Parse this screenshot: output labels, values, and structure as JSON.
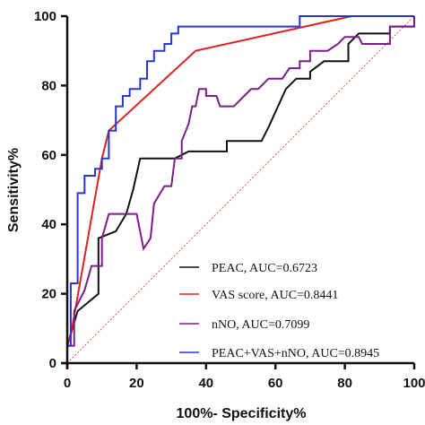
{
  "chart_data": {
    "type": "line",
    "title": "",
    "xlabel": "100%- Specificity%",
    "ylabel": "Sensitivity%",
    "xlim": [
      0,
      100
    ],
    "ylim": [
      0,
      100
    ],
    "x_ticks": [
      "0",
      "20",
      "40",
      "60",
      "80",
      "100"
    ],
    "y_ticks": [
      "0",
      "20",
      "40",
      "60",
      "80",
      "100"
    ],
    "grid": false,
    "legend_position": "bottom-right",
    "reference_line": {
      "from": [
        0,
        0
      ],
      "to": [
        100,
        100
      ],
      "color": "#e05050",
      "style": "dotted"
    },
    "series": [
      {
        "name": "PEAC, AUC=0.6723",
        "color": "#111111",
        "points": [
          [
            0,
            0
          ],
          [
            0,
            5
          ],
          [
            3,
            15
          ],
          [
            9,
            20
          ],
          [
            9,
            36
          ],
          [
            14,
            38
          ],
          [
            17,
            43
          ],
          [
            19,
            50
          ],
          [
            21,
            59
          ],
          [
            31,
            59
          ],
          [
            35,
            61
          ],
          [
            46,
            61
          ],
          [
            46,
            64
          ],
          [
            56,
            64
          ],
          [
            58,
            68
          ],
          [
            63,
            79
          ],
          [
            66,
            82
          ],
          [
            70,
            82
          ],
          [
            70,
            84
          ],
          [
            74,
            87
          ],
          [
            81,
            87
          ],
          [
            81,
            92
          ],
          [
            84,
            95
          ],
          [
            93,
            95
          ],
          [
            93,
            97
          ],
          [
            100,
            97
          ],
          [
            100,
            100
          ]
        ]
      },
      {
        "name": "VAS score, AUC=0.8441",
        "color": "#e02020",
        "points": [
          [
            0,
            0
          ],
          [
            0,
            5
          ],
          [
            1,
            8
          ],
          [
            10,
            59
          ],
          [
            12,
            67
          ],
          [
            37,
            90
          ],
          [
            82,
            100
          ],
          [
            100,
            100
          ]
        ]
      },
      {
        "name": "nNO, AUC=0.7099",
        "color": "#7a1f8a",
        "points": [
          [
            0,
            0
          ],
          [
            0,
            5
          ],
          [
            2,
            5
          ],
          [
            2,
            15
          ],
          [
            5,
            21
          ],
          [
            7,
            28
          ],
          [
            10,
            28
          ],
          [
            10,
            36
          ],
          [
            12,
            43
          ],
          [
            20,
            43
          ],
          [
            22,
            33
          ],
          [
            24,
            36
          ],
          [
            25,
            46
          ],
          [
            28,
            51
          ],
          [
            30,
            51
          ],
          [
            31,
            59
          ],
          [
            33,
            59
          ],
          [
            33,
            64
          ],
          [
            35,
            69
          ],
          [
            36,
            74
          ],
          [
            37,
            74
          ],
          [
            38,
            79
          ],
          [
            40,
            79
          ],
          [
            40,
            77
          ],
          [
            43,
            77
          ],
          [
            44,
            74
          ],
          [
            48,
            74
          ],
          [
            51,
            77
          ],
          [
            53,
            79
          ],
          [
            55,
            79
          ],
          [
            58,
            82
          ],
          [
            62,
            82
          ],
          [
            64,
            85
          ],
          [
            67,
            85
          ],
          [
            67,
            87
          ],
          [
            70,
            87
          ],
          [
            70,
            90
          ],
          [
            75,
            90
          ],
          [
            78,
            92
          ],
          [
            80,
            94
          ],
          [
            84,
            94
          ],
          [
            85,
            92
          ],
          [
            93,
            92
          ],
          [
            93,
            97
          ],
          [
            100,
            97
          ],
          [
            100,
            100
          ]
        ]
      },
      {
        "name": "PEAC+VAS+nNO, AUC=0.8945",
        "color": "#2a35d0",
        "points": [
          [
            0,
            0
          ],
          [
            0,
            5
          ],
          [
            1,
            5
          ],
          [
            1,
            23
          ],
          [
            3,
            23
          ],
          [
            3,
            49
          ],
          [
            5,
            49
          ],
          [
            5,
            54
          ],
          [
            8,
            54
          ],
          [
            8,
            56
          ],
          [
            10,
            56
          ],
          [
            10,
            59
          ],
          [
            12,
            59
          ],
          [
            12,
            67
          ],
          [
            14,
            67
          ],
          [
            14,
            74
          ],
          [
            16,
            74
          ],
          [
            16,
            77
          ],
          [
            18,
            77
          ],
          [
            18,
            79
          ],
          [
            21,
            79
          ],
          [
            21,
            82
          ],
          [
            23,
            82
          ],
          [
            23,
            87
          ],
          [
            25,
            87
          ],
          [
            25,
            90
          ],
          [
            28,
            90
          ],
          [
            28,
            92
          ],
          [
            30,
            92
          ],
          [
            30,
            95
          ],
          [
            32,
            95
          ],
          [
            32,
            97
          ],
          [
            37,
            97
          ],
          [
            37,
            97
          ],
          [
            48,
            97
          ],
          [
            48,
            97
          ],
          [
            67,
            97
          ],
          [
            67,
            100
          ],
          [
            100,
            100
          ]
        ]
      }
    ]
  }
}
